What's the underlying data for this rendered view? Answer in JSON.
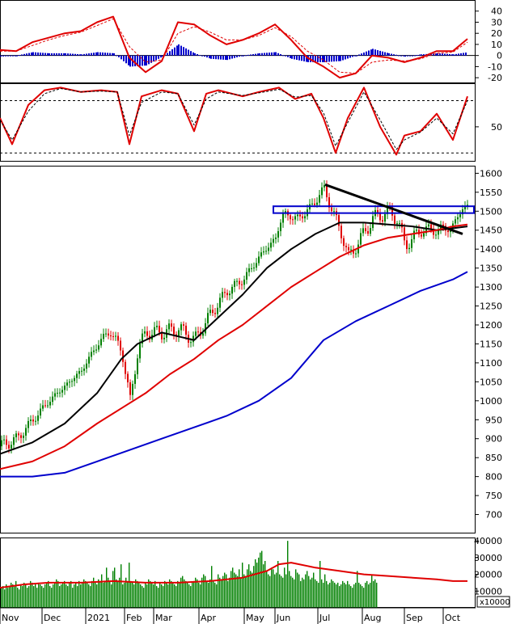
{
  "chart_data": [
    {
      "type": "line",
      "panel": "macd",
      "ylim": [
        -25,
        50
      ],
      "yticks": [
        "40",
        "30",
        "20",
        "10",
        "0",
        "-10",
        "-20"
      ],
      "series": [
        {
          "role": "macd",
          "color": "#e00000",
          "x": [
            0,
            20,
            40,
            60,
            80,
            100,
            120,
            140,
            160,
            180,
            200,
            220,
            240,
            260,
            280,
            300,
            320,
            340,
            360,
            380,
            400,
            420,
            440,
            460,
            480,
            500,
            520,
            540,
            560,
            578
          ],
          "values": [
            5,
            4,
            12,
            16,
            20,
            22,
            30,
            35,
            -2,
            -15,
            -5,
            30,
            28,
            18,
            10,
            14,
            20,
            28,
            14,
            -2,
            -10,
            -20,
            -16,
            0,
            -2,
            -6,
            -2,
            4,
            4,
            15
          ]
        },
        {
          "role": "signal",
          "color": "#e00000",
          "dashed": true,
          "x": [
            0,
            20,
            40,
            60,
            80,
            100,
            120,
            140,
            160,
            180,
            200,
            220,
            240,
            260,
            280,
            300,
            320,
            340,
            360,
            380,
            400,
            420,
            440,
            460,
            480,
            500,
            520,
            540,
            560,
            578
          ],
          "values": [
            4,
            4,
            9,
            14,
            18,
            21,
            27,
            33,
            8,
            -6,
            -4,
            20,
            26,
            21,
            14,
            14,
            18,
            25,
            17,
            4,
            -4,
            -15,
            -16,
            -6,
            -4,
            -5,
            -3,
            2,
            3,
            12
          ]
        },
        {
          "role": "histogram",
          "color": "#0000cc",
          "x": [
            0,
            20,
            40,
            60,
            80,
            100,
            120,
            140,
            160,
            180,
            200,
            220,
            240,
            260,
            280,
            300,
            320,
            340,
            360,
            380,
            400,
            420,
            440,
            460,
            480,
            500,
            520,
            540,
            560,
            578
          ],
          "values": [
            -1,
            0,
            3,
            2,
            2,
            1,
            3,
            2,
            -10,
            -9,
            -1,
            10,
            2,
            -3,
            -4,
            0,
            2,
            3,
            -3,
            -6,
            -6,
            -5,
            0,
            6,
            2,
            -1,
            1,
            2,
            1,
            3
          ]
        }
      ]
    },
    {
      "type": "line",
      "panel": "stochastic",
      "ylim": [
        10,
        100
      ],
      "yticks": [
        "50"
      ],
      "reference_lines": [
        80,
        20
      ],
      "series": [
        {
          "role": "k",
          "color": "#e00000",
          "x": [
            0,
            15,
            35,
            55,
            75,
            100,
            125,
            145,
            160,
            175,
            200,
            220,
            240,
            255,
            270,
            300,
            320,
            345,
            365,
            385,
            400,
            415,
            430,
            450,
            470,
            490,
            500,
            520,
            540,
            560,
            578
          ],
          "values": [
            60,
            30,
            75,
            92,
            95,
            90,
            92,
            90,
            30,
            85,
            92,
            88,
            45,
            88,
            92,
            85,
            90,
            95,
            82,
            88,
            60,
            20,
            60,
            95,
            50,
            18,
            40,
            45,
            65,
            35,
            85
          ]
        },
        {
          "role": "d",
          "color": "#000000",
          "dashed": true,
          "x": [
            0,
            15,
            35,
            55,
            75,
            100,
            125,
            145,
            160,
            175,
            200,
            220,
            240,
            255,
            270,
            300,
            320,
            345,
            365,
            385,
            400,
            415,
            430,
            450,
            470,
            490,
            500,
            520,
            540,
            560,
            578
          ],
          "values": [
            58,
            35,
            68,
            88,
            94,
            90,
            91,
            90,
            40,
            78,
            90,
            88,
            52,
            82,
            90,
            86,
            89,
            93,
            84,
            86,
            66,
            28,
            55,
            90,
            58,
            24,
            35,
            44,
            60,
            42,
            80
          ]
        }
      ]
    },
    {
      "type": "line",
      "panel": "price",
      "ylim": [
        650,
        1620
      ],
      "yticks": [
        "1600",
        "1550",
        "1500",
        "1450",
        "1400",
        "1350",
        "1300",
        "1250",
        "1200",
        "1150",
        "1100",
        "1050",
        "1000",
        "950",
        "900",
        "850",
        "800",
        "750",
        "700"
      ],
      "horizontal_band": [
        1495,
        1513
      ],
      "trendline": {
        "x": [
          402,
          572
        ],
        "values": [
          1570,
          1440
        ]
      },
      "series": [
        {
          "role": "close",
          "color": "#008000",
          "x": [
            0,
            20,
            40,
            60,
            80,
            100,
            120,
            135,
            150,
            160,
            170,
            180,
            200,
            220,
            240,
            260,
            280,
            300,
            320,
            340,
            350,
            360,
            375,
            390,
            400,
            410,
            420,
            430,
            440,
            460,
            480,
            490,
            500,
            520,
            540,
            560,
            570,
            578
          ],
          "values": [
            880,
            900,
            950,
            1000,
            1040,
            1080,
            1150,
            1185,
            1130,
            1000,
            1140,
            1180,
            1180,
            1190,
            1160,
            1230,
            1290,
            1320,
            1380,
            1430,
            1500,
            1480,
            1490,
            1530,
            1560,
            1500,
            1450,
            1380,
            1410,
            1480,
            1500,
            1480,
            1410,
            1450,
            1450,
            1460,
            1510,
            1510
          ]
        },
        {
          "role": "ma-black",
          "color": "#000000",
          "x": [
            0,
            40,
            80,
            120,
            150,
            170,
            200,
            240,
            270,
            300,
            330,
            360,
            390,
            420,
            450,
            480,
            510,
            540,
            560,
            578
          ],
          "values": [
            860,
            890,
            940,
            1020,
            1110,
            1150,
            1180,
            1160,
            1220,
            1280,
            1350,
            1400,
            1440,
            1470,
            1470,
            1465,
            1460,
            1450,
            1455,
            1460
          ]
        },
        {
          "role": "ma-red",
          "color": "#e00000",
          "x": [
            0,
            40,
            80,
            120,
            150,
            180,
            210,
            240,
            270,
            300,
            330,
            360,
            390,
            420,
            450,
            480,
            510,
            540,
            560,
            578
          ],
          "values": [
            820,
            840,
            880,
            940,
            980,
            1020,
            1070,
            1110,
            1160,
            1200,
            1250,
            1300,
            1340,
            1380,
            1410,
            1430,
            1440,
            1450,
            1460,
            1465
          ]
        },
        {
          "role": "ma-blue",
          "color": "#0000cc",
          "x": [
            0,
            40,
            80,
            120,
            160,
            200,
            240,
            280,
            320,
            360,
            400,
            440,
            480,
            520,
            560,
            578
          ],
          "values": [
            800,
            800,
            810,
            840,
            870,
            900,
            930,
            960,
            1000,
            1060,
            1160,
            1210,
            1250,
            1290,
            1320,
            1340
          ]
        }
      ]
    },
    {
      "type": "bar",
      "panel": "volume",
      "ylim": [
        0,
        42000
      ],
      "yticks": [
        "40000",
        "30000",
        "20000",
        "10000"
      ],
      "unit_label": "x10000",
      "volume_x_step": 2,
      "volume": [
        12000,
        13000,
        11000,
        14000,
        12000,
        13000,
        15000,
        14000,
        13000,
        16000,
        12000,
        11000,
        14000,
        13000,
        15000,
        14000,
        12000,
        13000,
        16000,
        15000,
        13000,
        14000,
        12000,
        15000,
        14000,
        13000,
        12000,
        14000,
        15000,
        16000,
        13000,
        12000,
        14000,
        15000,
        17000,
        16000,
        13000,
        14000,
        15000,
        16000,
        14000,
        13000,
        15000,
        16000,
        12000,
        14000,
        15000,
        13000,
        16000,
        14000,
        15000,
        17000,
        16000,
        15000,
        14000,
        13000,
        16000,
        18000,
        15000,
        14000,
        17000,
        16000,
        20000,
        15000,
        16000,
        24000,
        18000,
        16000,
        14000,
        22000,
        24000,
        17000,
        16000,
        18000,
        26000,
        14000,
        15000,
        18000,
        16000,
        27000,
        16000,
        15000,
        14000,
        17000,
        16000,
        15000,
        14000,
        13000,
        12000,
        15000,
        14000,
        17000,
        16000,
        15000,
        14000,
        16000,
        13000,
        12000,
        15000,
        14000,
        13000,
        16000,
        15000,
        14000,
        17000,
        16000,
        15000,
        14000,
        13000,
        16000,
        15000,
        18000,
        19000,
        17000,
        16000,
        15000,
        14000,
        13000,
        15000,
        16000,
        18000,
        17000,
        15000,
        14000,
        18000,
        20000,
        19000,
        16000,
        15000,
        17000,
        25000,
        16000,
        15000,
        14000,
        20000,
        18000,
        17000,
        19000,
        21000,
        20000,
        16000,
        18000,
        22000,
        24000,
        21000,
        20000,
        19000,
        23000,
        18000,
        27000,
        20000,
        19000,
        23000,
        26000,
        22000,
        21000,
        25000,
        29000,
        27000,
        30000,
        33000,
        34000,
        26000,
        28000,
        22000,
        20000,
        19000,
        24000,
        23000,
        20000,
        21000,
        28000,
        20000,
        19000,
        18000,
        24000,
        20000,
        40000,
        22000,
        19000,
        18000,
        17000,
        23000,
        21000,
        20000,
        16000,
        18000,
        17000,
        20000,
        22000,
        19000,
        17000,
        18000,
        21000,
        17000,
        16000,
        15000,
        28000,
        17000,
        15000,
        20000,
        16000,
        14000,
        15000,
        17000,
        16000,
        15000,
        14000,
        15000,
        13000,
        14000,
        16000,
        15000,
        14000,
        16000,
        14000,
        13000,
        12000,
        14000,
        15000,
        22000,
        15000,
        14000,
        13000,
        12000,
        15000,
        16000,
        14000,
        15000,
        20000,
        16000,
        17000,
        15000
      ],
      "ma": {
        "color": "#e00000",
        "x": [
          0,
          30,
          60,
          100,
          140,
          180,
          220,
          260,
          300,
          330,
          345,
          360,
          390,
          420,
          450,
          480,
          510,
          540,
          560,
          578
        ],
        "values": [
          12000,
          14000,
          15000,
          15000,
          16000,
          15000,
          15000,
          16000,
          18000,
          22000,
          26000,
          27000,
          24000,
          22000,
          20000,
          19000,
          18000,
          17000,
          16000,
          16000
        ]
      }
    }
  ],
  "x_axis": {
    "labels": [
      "Nov",
      "Dec",
      "2021",
      "Feb",
      "Mar",
      "Apr",
      "May",
      "Jun",
      "Jul",
      "Aug",
      "Sep",
      "Oct"
    ],
    "positions": [
      8,
      60,
      114,
      162,
      198,
      254,
      310,
      348,
      401,
      456,
      508,
      556
    ]
  }
}
